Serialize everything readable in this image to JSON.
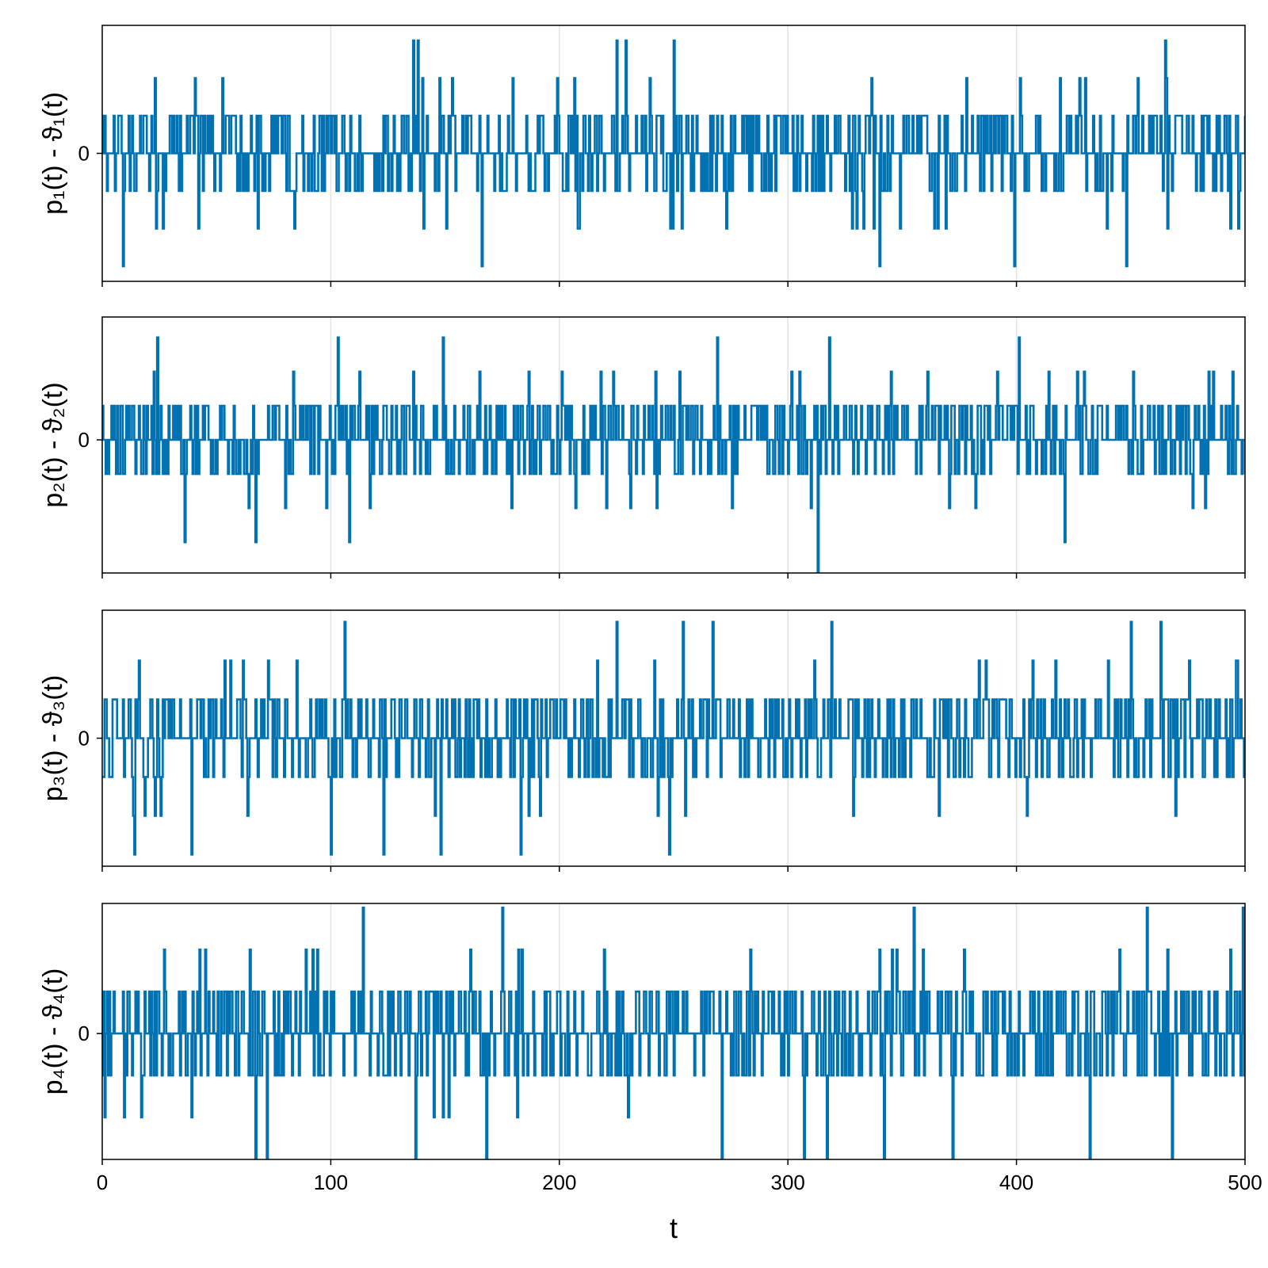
{
  "chart_data": [
    {
      "type": "line",
      "ylabel": "p₁(t) - ϑ₁(t)",
      "xlim": [
        0,
        500
      ],
      "ylim": [
        -3.4,
        3.4
      ],
      "yticks": [
        {
          "value": 0,
          "label": "0"
        }
      ],
      "xticks": [
        0,
        100,
        200,
        300,
        400,
        500
      ],
      "grid": true,
      "color": "#0072b2",
      "step": true,
      "series": [
        {
          "x_start": 0,
          "x_step": 0.5,
          "levels": [
            -3,
            -2,
            -1,
            0,
            1,
            2,
            3
          ],
          "values": []
        }
      ],
      "extremes": [
        {
          "x": 9,
          "y": -3
        },
        {
          "x": 136,
          "y": 3
        },
        {
          "x": 138,
          "y": 3
        },
        {
          "x": 166,
          "y": -3
        },
        {
          "x": 225,
          "y": 3
        },
        {
          "x": 229,
          "y": 3
        },
        {
          "x": 250,
          "y": 3
        },
        {
          "x": 340,
          "y": -3
        },
        {
          "x": 399,
          "y": -3
        },
        {
          "x": 448,
          "y": -3
        },
        {
          "x": 465,
          "y": 3
        }
      ]
    },
    {
      "type": "line",
      "ylabel": "p₂(t) - ϑ₂(t)",
      "xlim": [
        0,
        500
      ],
      "ylim": [
        -3.9,
        3.6
      ],
      "yticks": [
        {
          "value": 0,
          "label": "0"
        }
      ],
      "xticks": [
        0,
        100,
        200,
        300,
        400,
        500
      ],
      "grid": true,
      "color": "#0072b2",
      "step": true,
      "series": [
        {
          "x_start": 0,
          "x_step": 0.5,
          "levels": [
            -3,
            -2,
            -1,
            0,
            1,
            2,
            3
          ],
          "values": []
        }
      ],
      "extremes": [
        {
          "x": 24,
          "y": 3
        },
        {
          "x": 36,
          "y": -3
        },
        {
          "x": 67,
          "y": -3
        },
        {
          "x": 103,
          "y": 3
        },
        {
          "x": 108,
          "y": -3
        },
        {
          "x": 149,
          "y": 3
        },
        {
          "x": 269,
          "y": 3
        },
        {
          "x": 313,
          "y": -4
        },
        {
          "x": 318,
          "y": 3
        },
        {
          "x": 401,
          "y": 3
        },
        {
          "x": 421,
          "y": -3
        }
      ]
    },
    {
      "type": "line",
      "ylabel": "p₃(t) - ϑ₃(t)",
      "xlim": [
        0,
        500
      ],
      "ylim": [
        -3.3,
        3.3
      ],
      "yticks": [
        {
          "value": 0,
          "label": "0"
        }
      ],
      "xticks": [
        0,
        100,
        200,
        300,
        400,
        500
      ],
      "grid": true,
      "color": "#0072b2",
      "step": true,
      "series": [
        {
          "x_start": 0,
          "x_step": 0.5,
          "levels": [
            -3,
            -2,
            -1,
            0,
            1,
            2,
            3
          ],
          "values": []
        }
      ],
      "extremes": [
        {
          "x": 14,
          "y": -3
        },
        {
          "x": 39,
          "y": -3
        },
        {
          "x": 100,
          "y": -3
        },
        {
          "x": 106,
          "y": 3
        },
        {
          "x": 123,
          "y": -3
        },
        {
          "x": 148,
          "y": -3
        },
        {
          "x": 183,
          "y": -3
        },
        {
          "x": 225,
          "y": 3
        },
        {
          "x": 248,
          "y": -3
        },
        {
          "x": 254,
          "y": 3
        },
        {
          "x": 267,
          "y": 3
        },
        {
          "x": 319,
          "y": 3
        },
        {
          "x": 450,
          "y": 3
        },
        {
          "x": 463,
          "y": 3
        }
      ]
    },
    {
      "type": "line",
      "ylabel": "p₄(t) - ϑ₄(t)",
      "xlim": [
        0,
        500
      ],
      "ylim": [
        -3.0,
        3.1
      ],
      "yticks": [
        {
          "value": 0,
          "label": "0"
        }
      ],
      "xticks": [
        0,
        100,
        200,
        300,
        400,
        500
      ],
      "xticklabels": [
        "0",
        "100",
        "200",
        "300",
        "400",
        "500"
      ],
      "xlabel": "t",
      "grid": true,
      "color": "#0072b2",
      "step": true,
      "series": [
        {
          "x_start": 0,
          "x_step": 0.5,
          "levels": [
            -3,
            -2,
            -1,
            0,
            1,
            2,
            3
          ],
          "values": []
        }
      ],
      "extremes": [
        {
          "x": 67,
          "y": -3
        },
        {
          "x": 72,
          "y": -3
        },
        {
          "x": 114,
          "y": 3
        },
        {
          "x": 137,
          "y": -3
        },
        {
          "x": 168,
          "y": -3
        },
        {
          "x": 175,
          "y": 3
        },
        {
          "x": 271,
          "y": -3
        },
        {
          "x": 307,
          "y": -3
        },
        {
          "x": 317,
          "y": -3
        },
        {
          "x": 342,
          "y": -3
        },
        {
          "x": 355,
          "y": 3
        },
        {
          "x": 372,
          "y": -3
        },
        {
          "x": 432,
          "y": -3
        },
        {
          "x": 457,
          "y": 3
        },
        {
          "x": 468,
          "y": -3
        },
        {
          "x": 499,
          "y": 3
        }
      ]
    }
  ]
}
